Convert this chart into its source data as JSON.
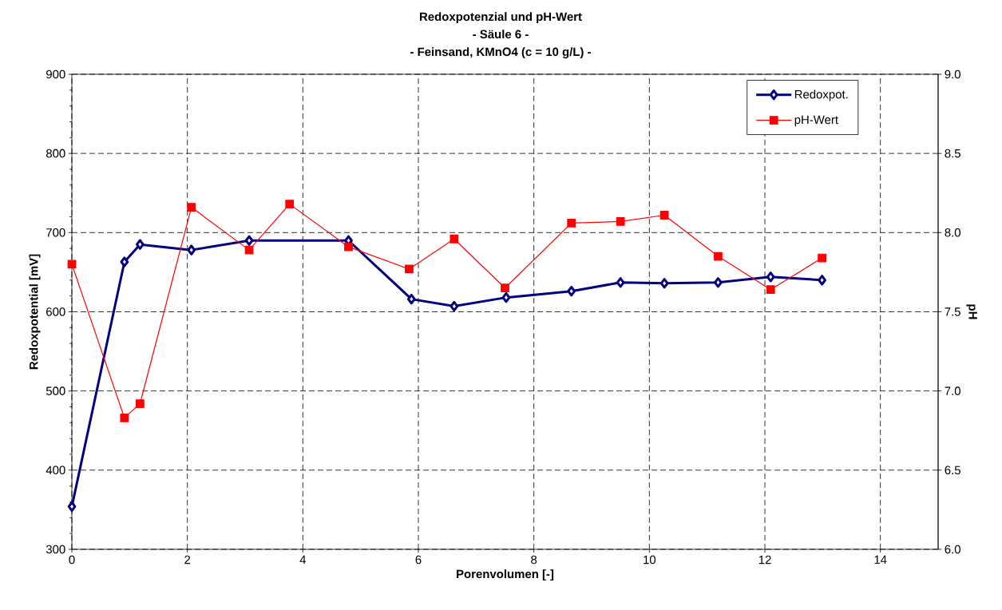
{
  "chart_data": {
    "type": "line",
    "title": "Redoxpotenzial und pH-Wert",
    "subtitle": "- Säule 6 -",
    "annotations": [
      "- Feinsand, KMnO4 (c = 10 g/L) -"
    ],
    "xlabel": "Porenvolumen [-]",
    "ylabel": "Redoxpotential [mV]",
    "y2label": "pH",
    "xlim": [
      0,
      15
    ],
    "xticks": [
      0,
      2,
      4,
      6,
      8,
      10,
      12,
      14
    ],
    "ylim": [
      300,
      900
    ],
    "yticks": [
      300,
      400,
      500,
      600,
      700,
      800,
      900
    ],
    "y2lim": [
      6,
      9
    ],
    "y2ticks": [
      {
        "value": 6,
        "label": "6.0"
      },
      {
        "value": 6.5,
        "label": "6.5"
      },
      {
        "value": 7,
        "label": "7.0"
      },
      {
        "value": 7.5,
        "label": "7.5"
      },
      {
        "value": 8,
        "label": "8.0"
      },
      {
        "value": 8.5,
        "label": "8.5"
      },
      {
        "value": 9,
        "label": "9.0"
      }
    ],
    "grid": true,
    "legend": "top right",
    "series": [
      {
        "name": "Redoxpot.",
        "color": "#000080",
        "marker": "diamond",
        "x": [
          0,
          0.91,
          1.18,
          2.07,
          3.07,
          4.79,
          5.88,
          6.62,
          7.52,
          8.65,
          9.5,
          10.26,
          11.19,
          12.1,
          12.99
        ],
        "values": [
          354,
          663,
          685,
          678,
          690,
          690,
          616,
          607,
          618,
          626,
          637,
          636,
          637,
          644,
          640
        ]
      },
      {
        "name": "pH-Wert",
        "color": "#ff0000",
        "marker": "square",
        "axis": "y2",
        "x": [
          0,
          0.91,
          1.18,
          2.07,
          3.07,
          3.77,
          4.79,
          5.84,
          6.62,
          7.5,
          8.65,
          9.5,
          10.26,
          11.19,
          12.1,
          12.99
        ],
        "values": [
          7.8,
          6.83,
          6.92,
          8.16,
          7.89,
          8.18,
          7.91,
          7.77,
          7.96,
          7.65,
          8.06,
          8.07,
          8.11,
          7.85,
          7.64,
          7.84
        ]
      }
    ]
  }
}
